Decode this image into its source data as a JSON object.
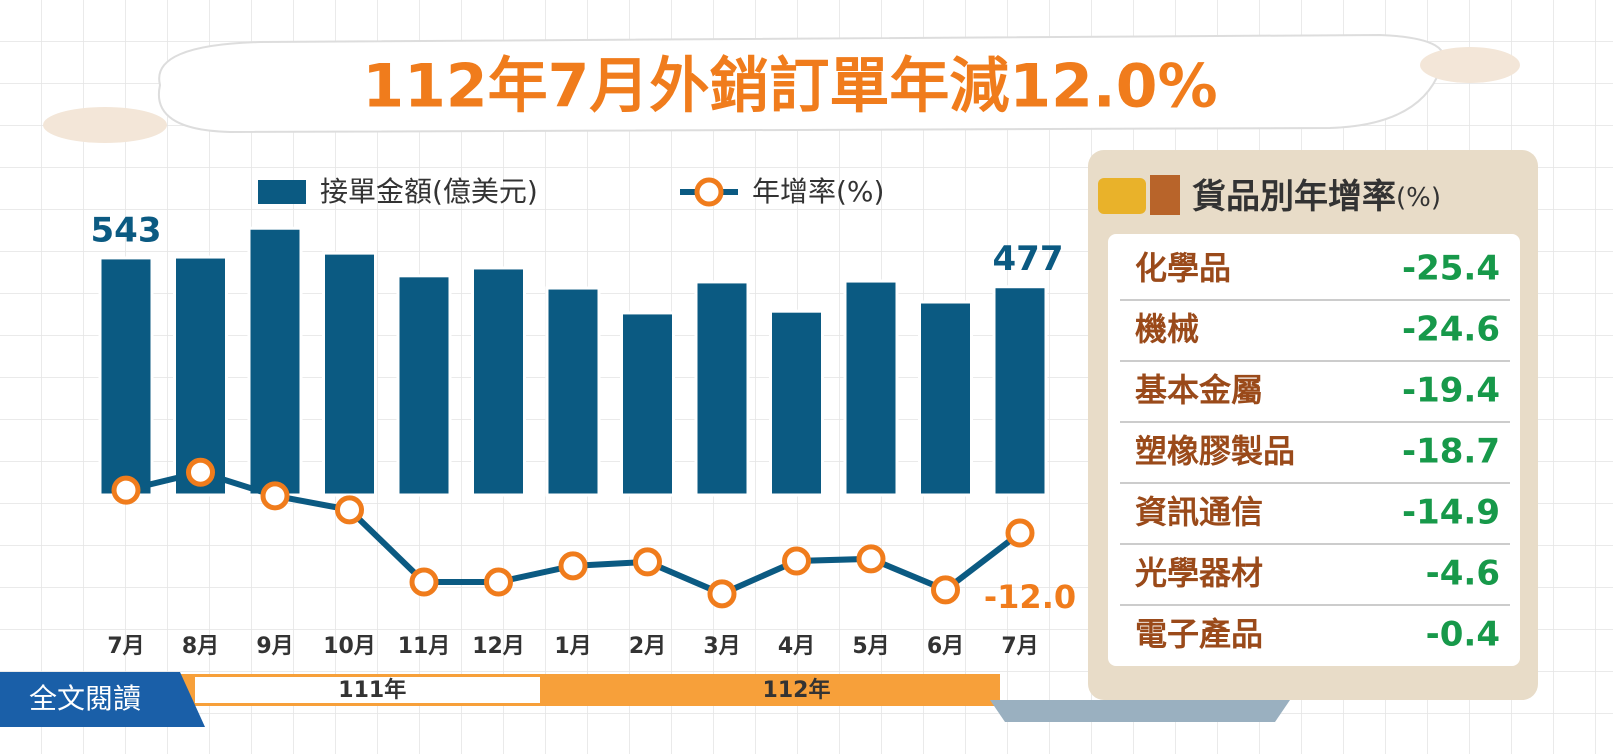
{
  "title": "112年7月外銷訂單年減12.0%",
  "button": "全文閱讀",
  "chart_data": {
    "type": "bar-line",
    "categories": [
      "7月",
      "8月",
      "9月",
      "10月",
      "11月",
      "12月",
      "1月",
      "2月",
      "3月",
      "4月",
      "5月",
      "6月",
      "7月"
    ],
    "x_groups": [
      {
        "label": "111年",
        "count": 6
      },
      {
        "label": "112年",
        "count": 7
      }
    ],
    "ylim": [
      0,
      620
    ],
    "y2lim": [
      -30,
      5
    ],
    "series": [
      {
        "name": "接單金額(億美元)",
        "color": "#0b5a82",
        "values": [
          543,
          545,
          611,
          554,
          502,
          520,
          474,
          417,
          488,
          421,
          490,
          442,
          477
        ],
        "value_labels": [
          "543",
          null,
          null,
          null,
          null,
          null,
          null,
          null,
          null,
          null,
          null,
          null,
          "477"
        ]
      },
      {
        "name": "年增率(%)",
        "color": "#0b5a82",
        "marker_color": "#f07c1c",
        "axis": "y2",
        "values": [
          -2.2,
          1.9,
          -3.5,
          -6.7,
          -23.2,
          -23.2,
          -19.5,
          -18.6,
          -25.9,
          -18.4,
          -17.9,
          -25.0,
          -12.0
        ],
        "value_labels": [
          null,
          null,
          null,
          null,
          null,
          null,
          null,
          null,
          null,
          null,
          null,
          null,
          "-12.0"
        ]
      }
    ]
  },
  "goods_panel": {
    "title": "貨品別年增率",
    "unit": "(%)",
    "rows": [
      {
        "name": "化學品",
        "value": -25.4
      },
      {
        "name": "機械",
        "value": -24.6
      },
      {
        "name": "基本金屬",
        "value": -19.4
      },
      {
        "name": "塑橡膠製品",
        "value": -18.7
      },
      {
        "name": "資訊通信",
        "value": -14.9
      },
      {
        "name": "光學器材",
        "value": -4.6
      },
      {
        "name": "電子產品",
        "value": -0.4
      }
    ]
  }
}
